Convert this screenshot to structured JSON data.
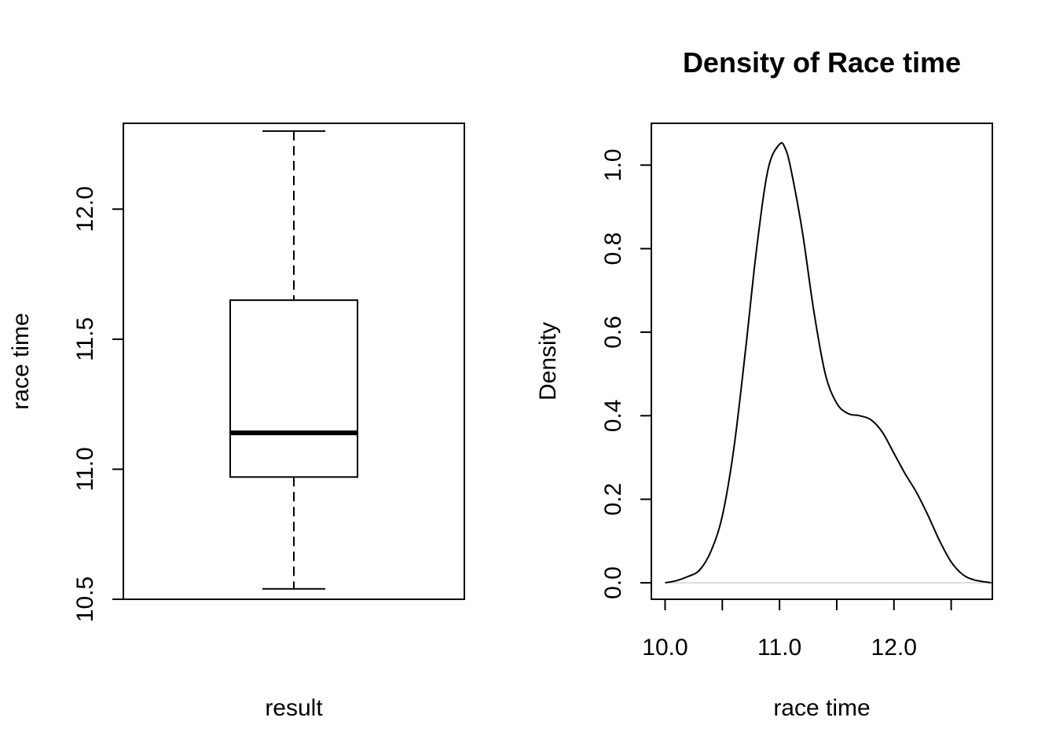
{
  "chart_data": [
    {
      "type": "boxplot",
      "title": "",
      "xlabel": "result",
      "ylabel": "race time",
      "ylim": [
        10.5,
        12.33
      ],
      "yticks": [
        "10.5",
        "11.0",
        "11.5",
        "12.0"
      ],
      "stats": {
        "lower_whisker": 10.54,
        "q1": 10.97,
        "median": 11.14,
        "q3": 11.65,
        "upper_whisker": 12.3
      },
      "grid": false
    },
    {
      "type": "line",
      "title": "Density of Race time",
      "xlabel": "race time",
      "ylabel": "Density",
      "xlim": [
        9.88,
        12.86
      ],
      "ylim": [
        0,
        1.07
      ],
      "xticks": [
        "10.0",
        "11.0",
        "12.0"
      ],
      "yticks": [
        "0.0",
        "0.2",
        "0.4",
        "0.6",
        "0.8",
        "1.0"
      ],
      "grid": false,
      "series": [
        {
          "x": [
            10.0,
            10.1,
            10.2,
            10.3,
            10.4,
            10.5,
            10.6,
            10.7,
            10.8,
            10.9,
            11.0,
            11.05,
            11.1,
            11.2,
            11.3,
            11.4,
            11.5,
            11.6,
            11.7,
            11.8,
            11.9,
            12.0,
            12.1,
            12.2,
            12.3,
            12.4,
            12.5,
            12.6,
            12.7,
            12.85
          ],
          "y": [
            0.0,
            0.005,
            0.015,
            0.03,
            0.075,
            0.16,
            0.32,
            0.55,
            0.8,
            0.99,
            1.05,
            1.04,
            0.99,
            0.84,
            0.65,
            0.5,
            0.43,
            0.405,
            0.4,
            0.39,
            0.36,
            0.31,
            0.26,
            0.215,
            0.16,
            0.1,
            0.05,
            0.02,
            0.007,
            0.0
          ]
        }
      ]
    }
  ]
}
